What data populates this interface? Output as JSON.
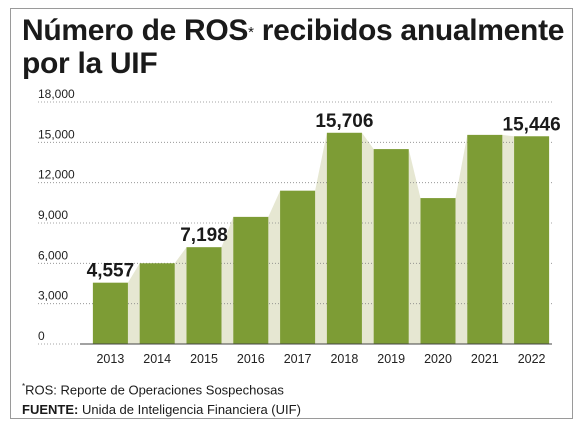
{
  "title": {
    "main_before": "Número de ROS",
    "asterisk": "*",
    "main_after": " recibidos anualmente por la UIF"
  },
  "chart_data": {
    "type": "bar",
    "categories": [
      "2013",
      "2014",
      "2015",
      "2016",
      "2017",
      "2018",
      "2019",
      "2020",
      "2021",
      "2022"
    ],
    "values": [
      4557,
      6000,
      7198,
      9450,
      11400,
      15706,
      14500,
      10850,
      15550,
      15446
    ],
    "labeled": {
      "2013": "4,557",
      "2015": "7,198",
      "2018": "15,706",
      "2022": "15,446"
    },
    "yticks": [
      0,
      3000,
      6000,
      9000,
      12000,
      15000,
      18000
    ],
    "ytick_labels": [
      "0",
      "3,000",
      "6,000",
      "9,000",
      "12,000",
      "15,000",
      "18,000"
    ],
    "ylim": [
      0,
      18000
    ],
    "bar_color": "#7d9c35",
    "area_color": "#e6e7d2",
    "grid": true
  },
  "footnotes": {
    "asterisk": "*",
    "ros_text": "ROS: Reporte de Operaciones Sospechosas",
    "source_label": "FUENTE:",
    "source_text": " Unida de Inteligencia Financiera (UIF)"
  }
}
